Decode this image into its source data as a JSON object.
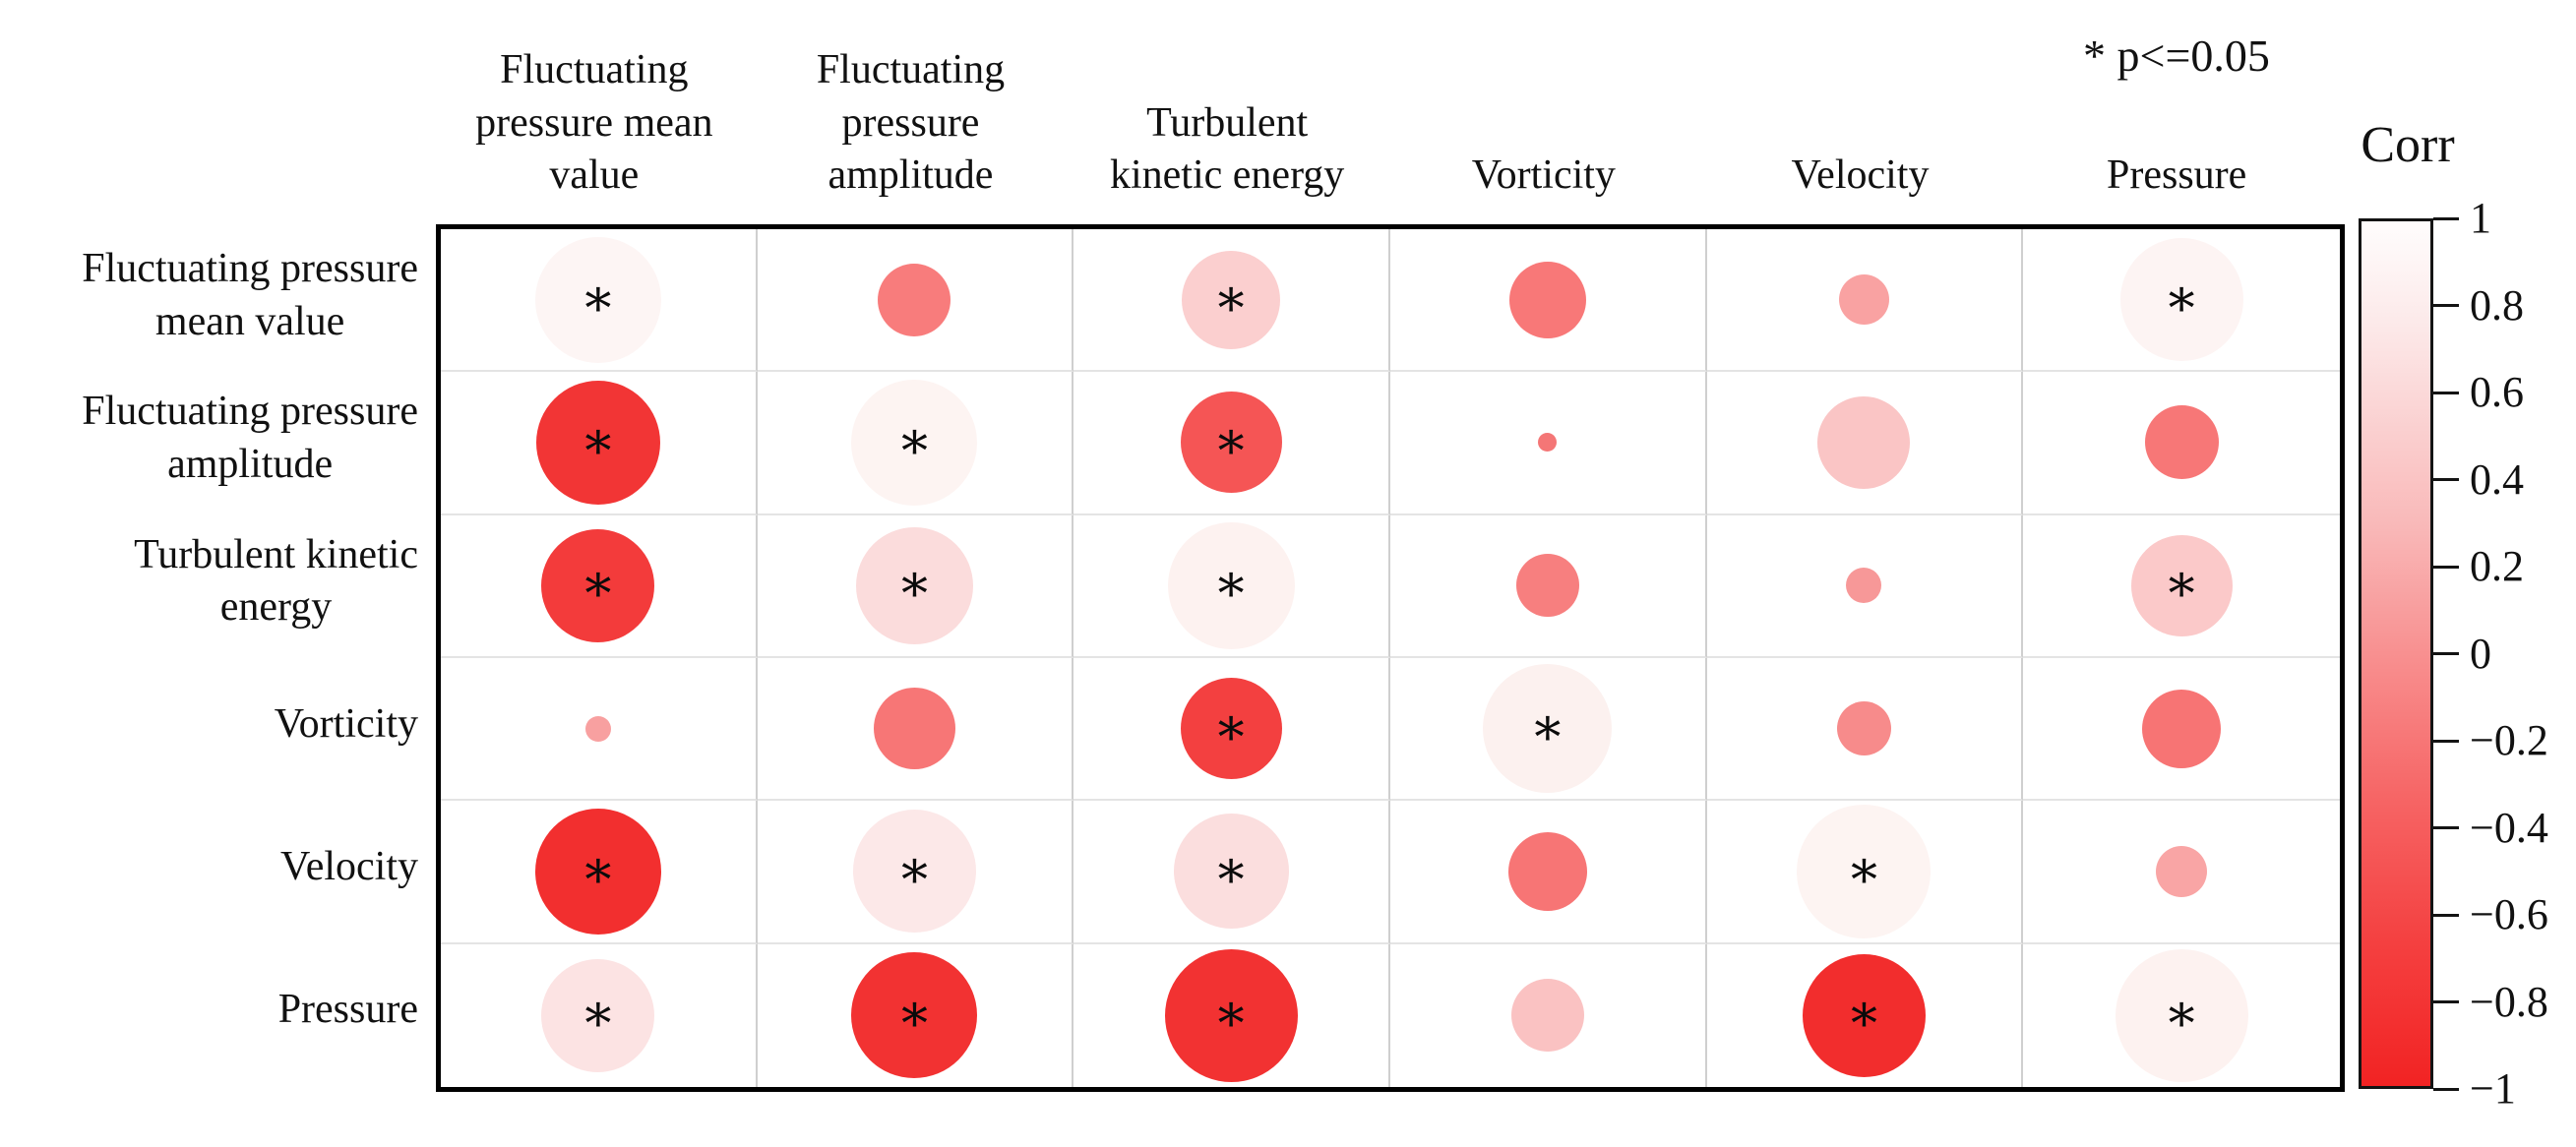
{
  "chart_data": {
    "type": "correlation-bubble-matrix",
    "title": "",
    "significance_note": "* p<=0.05",
    "legend_title": "Corr",
    "colorbar": {
      "ticks": [
        "1",
        "0.8",
        "0.6",
        "0.4",
        "0.2",
        "0",
        "−0.2",
        "−0.4",
        "−0.6",
        "−0.8",
        "−1"
      ],
      "range": [
        1,
        -1
      ],
      "top_color": "#fffdfd",
      "mid_color": "#f89090",
      "bottom_color": "#f22323"
    },
    "row_labels": [
      "Fluctuating pressure\nmean value",
      "Fluctuating pressure\namplitude",
      "Turbulent kinetic\nenergy",
      "Vorticity",
      "Velocity",
      "Pressure"
    ],
    "col_labels": [
      "Fluctuating\npressure mean\nvalue",
      "Fluctuating\npressure\namplitude",
      "Turbulent\nkinetic energy",
      "Vorticity",
      "Velocity",
      "Pressure"
    ],
    "cells": [
      {
        "row": 0,
        "col": 0,
        "corr": 1.0,
        "size": 0.88,
        "color": "#fdf5f4",
        "significant": true
      },
      {
        "row": 0,
        "col": 1,
        "corr": -0.5,
        "size": 0.51,
        "color": "#f87c7c",
        "significant": false
      },
      {
        "row": 0,
        "col": 2,
        "corr": 0.62,
        "size": 0.69,
        "color": "#fbcfcf",
        "significant": true
      },
      {
        "row": 0,
        "col": 3,
        "corr": -0.52,
        "size": 0.54,
        "color": "#f87878",
        "significant": false
      },
      {
        "row": 0,
        "col": 4,
        "corr": 0.33,
        "size": 0.35,
        "color": "#f9a2a2",
        "significant": false
      },
      {
        "row": 0,
        "col": 5,
        "corr": 0.97,
        "size": 0.86,
        "color": "#fdf4f3",
        "significant": true
      },
      {
        "row": 1,
        "col": 0,
        "corr": -0.88,
        "size": 0.87,
        "color": "#f23535",
        "significant": true
      },
      {
        "row": 1,
        "col": 1,
        "corr": 1.0,
        "size": 0.88,
        "color": "#fdf4f2",
        "significant": true
      },
      {
        "row": 1,
        "col": 2,
        "corr": -0.72,
        "size": 0.71,
        "color": "#f55555",
        "significant": true
      },
      {
        "row": 1,
        "col": 3,
        "corr": -0.13,
        "size": 0.13,
        "color": "#f47676",
        "significant": false
      },
      {
        "row": 1,
        "col": 4,
        "corr": 0.6,
        "size": 0.65,
        "color": "#fac5c5",
        "significant": false
      },
      {
        "row": 1,
        "col": 5,
        "corr": -0.5,
        "size": 0.52,
        "color": "#f77777",
        "significant": false
      },
      {
        "row": 2,
        "col": 0,
        "corr": -0.8,
        "size": 0.79,
        "color": "#f33b3b",
        "significant": true
      },
      {
        "row": 2,
        "col": 1,
        "corr": 0.75,
        "size": 0.82,
        "color": "#fbdcdc",
        "significant": true
      },
      {
        "row": 2,
        "col": 2,
        "corr": 1.0,
        "size": 0.89,
        "color": "#fdf2f0",
        "significant": true
      },
      {
        "row": 2,
        "col": 3,
        "corr": -0.43,
        "size": 0.44,
        "color": "#f77f7f",
        "significant": false
      },
      {
        "row": 2,
        "col": 4,
        "corr": 0.24,
        "size": 0.25,
        "color": "#f79898",
        "significant": false
      },
      {
        "row": 2,
        "col": 5,
        "corr": 0.63,
        "size": 0.71,
        "color": "#fbc9c9",
        "significant": true
      },
      {
        "row": 3,
        "col": 0,
        "corr": 0.18,
        "size": 0.18,
        "color": "#f8a0a0",
        "significant": false
      },
      {
        "row": 3,
        "col": 1,
        "corr": -0.55,
        "size": 0.57,
        "color": "#f77676",
        "significant": false
      },
      {
        "row": 3,
        "col": 2,
        "corr": -0.7,
        "size": 0.71,
        "color": "#f34040",
        "significant": true
      },
      {
        "row": 3,
        "col": 3,
        "corr": 1.0,
        "size": 0.9,
        "color": "#fcf1ef",
        "significant": true
      },
      {
        "row": 3,
        "col": 4,
        "corr": -0.36,
        "size": 0.38,
        "color": "#f78b8b",
        "significant": false
      },
      {
        "row": 3,
        "col": 5,
        "corr": -0.53,
        "size": 0.55,
        "color": "#f77474",
        "significant": false
      },
      {
        "row": 4,
        "col": 0,
        "corr": -0.9,
        "size": 0.88,
        "color": "#f22f2f",
        "significant": true
      },
      {
        "row": 4,
        "col": 1,
        "corr": 0.82,
        "size": 0.86,
        "color": "#fce8e8",
        "significant": true
      },
      {
        "row": 4,
        "col": 2,
        "corr": 0.74,
        "size": 0.81,
        "color": "#fbdede",
        "significant": true
      },
      {
        "row": 4,
        "col": 3,
        "corr": -0.53,
        "size": 0.55,
        "color": "#f77575",
        "significant": false
      },
      {
        "row": 4,
        "col": 4,
        "corr": 1.0,
        "size": 0.94,
        "color": "#fdf4f2",
        "significant": true
      },
      {
        "row": 4,
        "col": 5,
        "corr": 0.34,
        "size": 0.36,
        "color": "#f9a5a5",
        "significant": false
      },
      {
        "row": 5,
        "col": 0,
        "corr": 0.78,
        "size": 0.79,
        "color": "#fce3e3",
        "significant": true
      },
      {
        "row": 5,
        "col": 1,
        "corr": -0.86,
        "size": 0.88,
        "color": "#f23232",
        "significant": true
      },
      {
        "row": 5,
        "col": 2,
        "corr": -0.91,
        "size": 0.93,
        "color": "#f23232",
        "significant": true
      },
      {
        "row": 5,
        "col": 3,
        "corr": 0.49,
        "size": 0.51,
        "color": "#fac2c2",
        "significant": false
      },
      {
        "row": 5,
        "col": 4,
        "corr": -0.88,
        "size": 0.86,
        "color": "#f22d2d",
        "significant": true
      },
      {
        "row": 5,
        "col": 5,
        "corr": 1.0,
        "size": 0.93,
        "color": "#fdf2f0",
        "significant": true
      }
    ]
  }
}
